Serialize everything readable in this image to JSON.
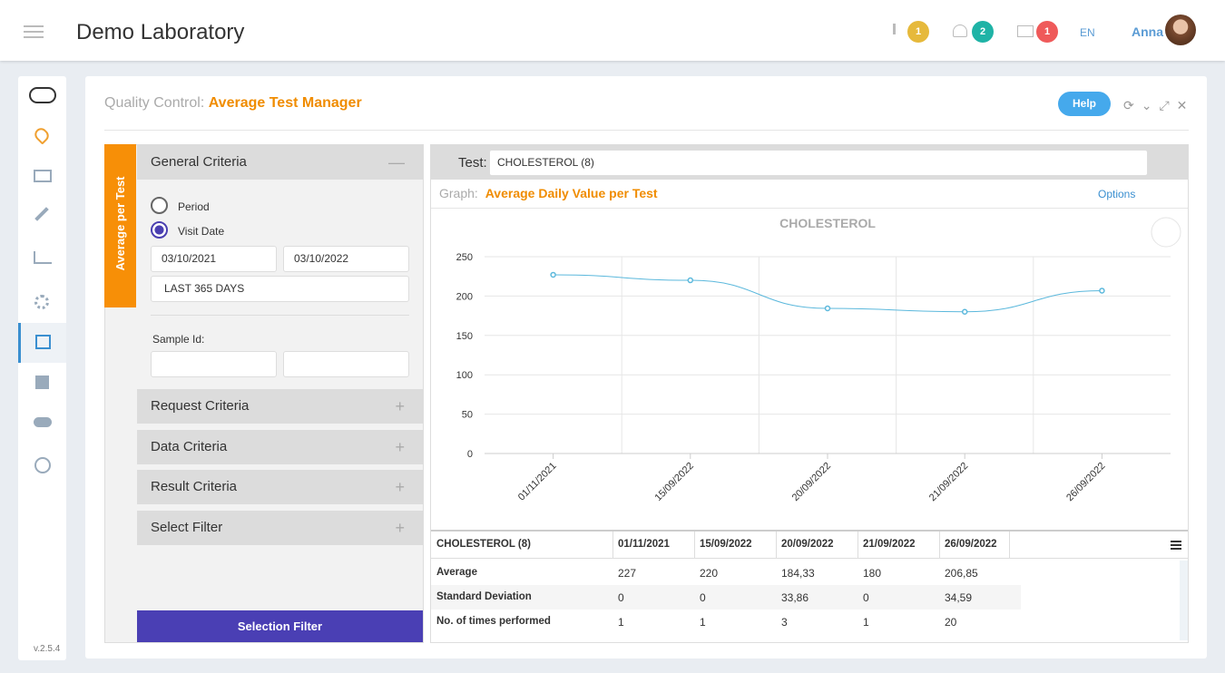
{
  "header": {
    "title": "Demo Laboratory",
    "badges": [
      "1",
      "2",
      "1"
    ],
    "language": "EN",
    "user": "Anna"
  },
  "sidebar": {
    "version": "v.2.5.4"
  },
  "panel": {
    "prefix": "Quality Control:",
    "title": "Average Test Manager",
    "help": "Help"
  },
  "vertical_tab": "Average per Test",
  "criteria": {
    "general": "General Criteria",
    "period": "Period",
    "visit_date": "Visit Date",
    "date_from": "03/10/2021",
    "date_to": "03/10/2022",
    "range": "LAST 365 DAYS",
    "sample_id": "Sample Id:",
    "sections": [
      "Request Criteria",
      "Data Criteria",
      "Result Criteria",
      "Select Filter"
    ],
    "button": "Selection Filter"
  },
  "test": {
    "label": "Test:",
    "value": "CHOLESTEROL (8)"
  },
  "graph": {
    "label": "Graph:",
    "title": "Average Daily Value per Test",
    "options": "Options"
  },
  "chart_data": {
    "type": "line",
    "title": "CHOLESTEROL",
    "categories": [
      "01/11/2021",
      "15/09/2022",
      "20/09/2022",
      "21/09/2022",
      "26/09/2022"
    ],
    "values": [
      227,
      220,
      184.33,
      180,
      206.85
    ],
    "color": "#5bb8dc",
    "ylim": [
      0,
      250
    ],
    "yticks": [
      0,
      50,
      100,
      150,
      200,
      250
    ],
    "grid": true
  },
  "table": {
    "header": [
      "CHOLESTEROL (8)",
      "01/11/2021",
      "15/09/2022",
      "20/09/2022",
      "21/09/2022",
      "26/09/2022"
    ],
    "rows": [
      [
        "Average",
        "227",
        "220",
        "184,33",
        "180",
        "206,85"
      ],
      [
        "Standard Deviation",
        "0",
        "0",
        "33,86",
        "0",
        "34,59"
      ],
      [
        "No. of times performed",
        "1",
        "1",
        "3",
        "1",
        "20"
      ]
    ]
  }
}
